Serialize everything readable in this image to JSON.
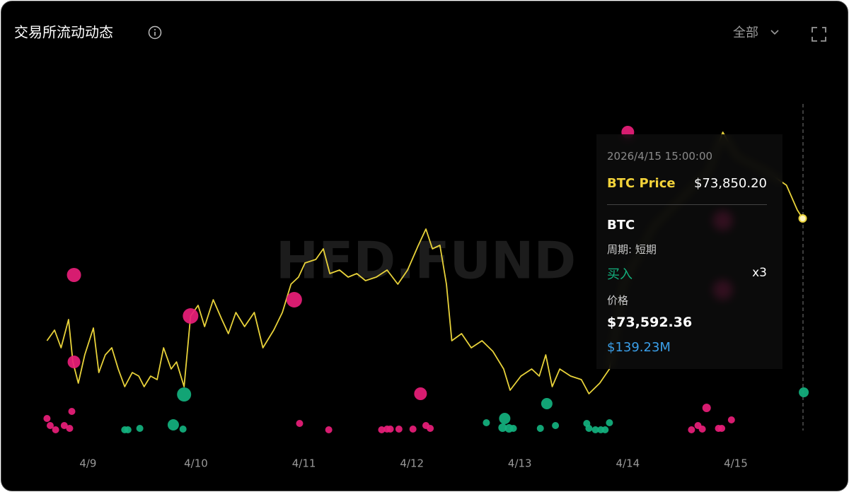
{
  "chart_data": {
    "type": "line",
    "title": "交易所流动动态",
    "filter": "全部",
    "watermark": "HFD.FUND",
    "xlim": [
      -0.54,
      6.8
    ],
    "xticks": [
      {
        "value": 0,
        "label": "4/9"
      },
      {
        "value": 1,
        "label": "4/10"
      },
      {
        "value": 2,
        "label": "4/11"
      },
      {
        "value": 3,
        "label": "4/12"
      },
      {
        "value": 4,
        "label": "4/13"
      },
      {
        "value": 5,
        "label": "4/14"
      },
      {
        "value": 6,
        "label": "4/15"
      }
    ],
    "ylim": [
      69305,
      76355
    ],
    "series": [
      {
        "type": "line",
        "color": "#e8d23a",
        "x": [
          -0.38,
          -0.31,
          -0.25,
          -0.18,
          -0.14,
          -0.09,
          -0.03,
          0.05,
          0.1,
          0.16,
          0.22,
          0.28,
          0.34,
          0.41,
          0.47,
          0.52,
          0.58,
          0.64,
          0.7,
          0.77,
          0.82,
          0.89,
          0.95,
          1.02,
          1.08,
          1.16,
          1.24,
          1.3,
          1.37,
          1.45,
          1.54,
          1.62,
          1.72,
          1.8,
          1.88,
          1.95,
          2.01,
          2.11,
          2.18,
          2.24,
          2.33,
          2.41,
          2.49,
          2.57,
          2.67,
          2.77,
          2.87,
          2.96,
          3.06,
          3.13,
          3.19,
          3.26,
          3.32,
          3.37,
          3.46,
          3.55,
          3.65,
          3.75,
          3.85,
          3.91,
          4.01,
          4.11,
          4.18,
          4.24,
          4.3,
          4.37,
          4.47,
          4.57,
          4.64,
          4.74,
          4.83,
          4.96,
          5.23,
          5.49,
          5.75,
          5.88,
          6.01,
          6.28,
          6.47,
          6.57,
          6.62
        ],
        "values": [
          71255,
          71480,
          71105,
          71705,
          70805,
          70355,
          70955,
          71525,
          70580,
          70955,
          71105,
          70655,
          70280,
          70580,
          70505,
          70280,
          70505,
          70430,
          71105,
          70655,
          70805,
          70280,
          71780,
          72005,
          71555,
          72125,
          71705,
          71405,
          71855,
          71555,
          71855,
          71105,
          71480,
          71855,
          72455,
          72605,
          72905,
          72980,
          73205,
          72680,
          72755,
          72605,
          72680,
          72530,
          72605,
          72755,
          72455,
          72755,
          73280,
          73625,
          73205,
          73280,
          72455,
          71255,
          71405,
          71105,
          71255,
          71030,
          70655,
          70205,
          70505,
          70655,
          70505,
          70955,
          70280,
          70655,
          70505,
          70430,
          70130,
          70355,
          70655,
          72455,
          73655,
          74255,
          74855,
          75680,
          75155,
          74855,
          74555,
          74030,
          73850
        ]
      },
      {
        "type": "bubble",
        "color": "#e91e7a",
        "x": [
          -0.13,
          -0.13,
          0.95,
          1.91,
          3.08,
          5.0,
          5.88,
          5.88,
          -0.38,
          -0.35,
          -0.3,
          -0.22,
          -0.17,
          -0.15,
          1.96,
          2.23,
          2.72,
          2.77,
          2.8,
          2.88,
          3.01,
          3.13,
          3.17,
          5.59,
          5.65,
          5.69,
          5.73,
          5.84,
          5.87,
          5.96
        ],
        "values": [
          72650,
          70805,
          71780,
          72125,
          70130,
          75680,
          73805,
          72335,
          69605,
          69455,
          69365,
          69455,
          69395,
          69755,
          69500,
          69365,
          69365,
          69380,
          69380,
          69380,
          69380,
          69455,
          69395,
          69365,
          69455,
          69380,
          69830,
          69395,
          69395,
          69575
        ],
        "sizes": [
          284,
          230,
          344,
          344,
          230,
          230,
          557,
          557,
          71,
          71,
          71,
          71,
          71,
          71,
          71,
          71,
          71,
          71,
          71,
          71,
          71,
          71,
          71,
          71,
          71,
          71,
          102,
          71,
          71,
          71
        ]
      },
      {
        "type": "bubble",
        "color": "#13b27f",
        "x": [
          0.89,
          0.34,
          0.37,
          0.48,
          0.79,
          0.88,
          3.69,
          3.86,
          3.84,
          3.9,
          3.94,
          4.19,
          4.25,
          4.33,
          4.62,
          4.64,
          4.7,
          4.75,
          4.79,
          4.83,
          6.63
        ],
        "values": [
          70115,
          69365,
          69365,
          69395,
          69470,
          69380,
          69515,
          69605,
          69410,
          69395,
          69395,
          69395,
          69920,
          69455,
          69500,
          69395,
          69365,
          69365,
          69365,
          69515,
          70160
        ],
        "sizes": [
          284,
          71,
          71,
          71,
          182,
          71,
          71,
          182,
          102,
          102,
          71,
          71,
          182,
          71,
          71,
          71,
          71,
          71,
          71,
          71,
          139
        ]
      }
    ],
    "tooltip": {
      "time": "2026/4/15 15:00:00",
      "price_label": "BTC Price",
      "price": "$73,850.20",
      "asset": "BTC",
      "period": "周期: 短期",
      "side": "买入",
      "count": "x3",
      "trade_price_label": "价格",
      "trade_price": "$73,592.36",
      "amount": "$139.23M"
    }
  }
}
